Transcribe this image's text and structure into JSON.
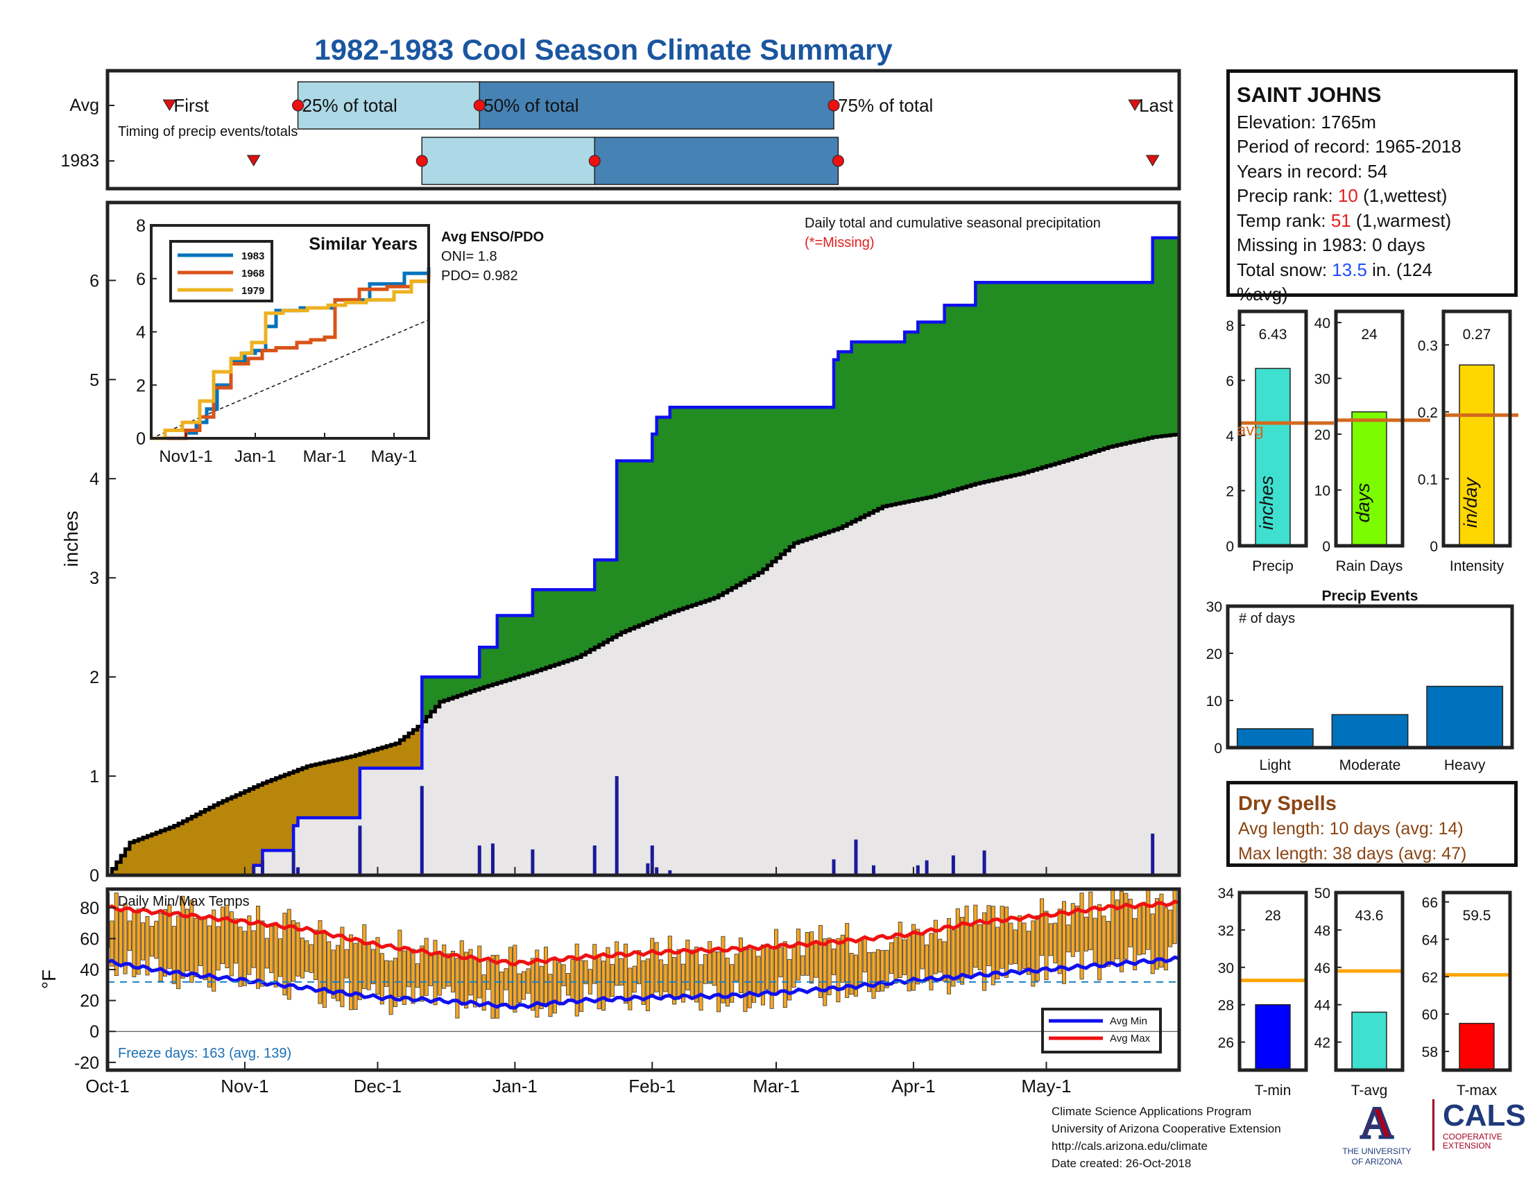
{
  "title": "1982-1983 Cool Season Climate Summary",
  "colors": {
    "title_blue": "#1a56a0",
    "light_blue": "#add8e6",
    "steel_blue": "#4682b4",
    "surplus_green": "#228b22",
    "deficit_brown": "#b8860b",
    "avg_fill_grey": "#e8e6e6",
    "season_line_blue": "#1010ee",
    "temp_bar_orange": "#f5a623",
    "max_red": "#ee1111",
    "min_blue": "#1010ee",
    "avg_line_orange": "#d2691e",
    "dry_brown": "#8b4513"
  },
  "station": {
    "name": "SAINT JOHNS",
    "elevation": "Elevation: 1765m",
    "period": "Period of record: 1965-2018",
    "years": "Years in record: 54",
    "precip_rank_label": "Precip rank: ",
    "precip_rank_value": "10",
    "precip_rank_note": " (1,wettest)",
    "temp_rank_label": "Temp rank: ",
    "temp_rank_value": "51",
    "temp_rank_note": " (1,warmest)",
    "missing": "Missing in 1983: 0 days",
    "snow_label": "Total snow: ",
    "snow_value": "13.5",
    "snow_note_1": " in. (124",
    "snow_note_2": "%avg)"
  },
  "dry_spells": {
    "heading": "Dry Spells",
    "avg_length": "Avg length: 10 days (avg: 14)",
    "max_length": "Max length: 38 days (avg: 47)"
  },
  "credits": {
    "line1": "Climate Science Applications Program",
    "line2": "University of Arizona Cooperative Extension",
    "line3": "http://cals.arizona.edu/climate",
    "line4": " Date created: 26-Oct-2018"
  },
  "logos": {
    "ua_mark": "A",
    "ua_caption_1": "THE UNIVERSITY",
    "ua_caption_2": "OF ARIZONA",
    "cals": "CALS",
    "cals_sub_1": "COOPERATIVE",
    "cals_sub_2": "EXTENSION"
  },
  "chart_data": [
    {
      "type": "timing",
      "title": "",
      "subtitle": "Timing of precip events/totals",
      "rows": [
        "Avg",
        "1983"
      ],
      "labels": {
        "first": "First",
        "q25": "25% of total",
        "q50": "50% of total",
        "q75": "75% of total",
        "last": "Last"
      },
      "avg": {
        "first": "1982-10-15",
        "q25": "1982-11-13",
        "q50": "1982-12-24",
        "q75": "1983-03-14",
        "last": "1983-05-21"
      },
      "year": {
        "first": "1982-11-03",
        "q25": "1982-12-11",
        "q50": "1983-01-19",
        "q75": "1983-03-15",
        "last": "1983-05-25"
      }
    },
    {
      "type": "area",
      "title": "Daily total and cumulative seasonal precipitation",
      "subtitle": "(*=Missing)",
      "ylabel": "inches",
      "xlim": [
        "1982-10-01",
        "1983-05-31"
      ],
      "ylim": [
        0,
        6.8
      ],
      "yticks": [
        0,
        1,
        2,
        3,
        4,
        5,
        6
      ],
      "xticks": [
        {
          "date": "1982-10-01",
          "label": "Oct-1"
        },
        {
          "date": "1982-11-01",
          "label": "Nov-1"
        },
        {
          "date": "1982-12-01",
          "label": "Dec-1"
        },
        {
          "date": "1983-01-01",
          "label": "Jan-1"
        },
        {
          "date": "1983-02-01",
          "label": "Feb-1"
        },
        {
          "date": "1983-03-01",
          "label": "Mar-1"
        },
        {
          "date": "1983-04-01",
          "label": "Apr-1"
        },
        {
          "date": "1983-05-01",
          "label": "May-1"
        }
      ],
      "avg_cumulative": [
        [
          "1982-10-01",
          0
        ],
        [
          "1982-10-06",
          0.33
        ],
        [
          "1982-10-16",
          0.5
        ],
        [
          "1982-10-26",
          0.73
        ],
        [
          "1982-11-05",
          0.93
        ],
        [
          "1982-11-15",
          1.1
        ],
        [
          "1982-11-25",
          1.2
        ],
        [
          "1982-12-05",
          1.33
        ],
        [
          "1982-12-10",
          1.5
        ],
        [
          "1982-12-15",
          1.75
        ],
        [
          "1982-12-25",
          1.9
        ],
        [
          "1983-01-05",
          2.05
        ],
        [
          "1983-01-15",
          2.2
        ],
        [
          "1983-01-25",
          2.45
        ],
        [
          "1983-02-05",
          2.65
        ],
        [
          "1983-02-15",
          2.8
        ],
        [
          "1983-02-25",
          3.05
        ],
        [
          "1983-03-05",
          3.35
        ],
        [
          "1983-03-15",
          3.5
        ],
        [
          "1983-03-25",
          3.72
        ],
        [
          "1983-04-05",
          3.82
        ],
        [
          "1983-04-15",
          3.95
        ],
        [
          "1983-04-25",
          4.05
        ],
        [
          "1983-05-05",
          4.18
        ],
        [
          "1983-05-15",
          4.32
        ],
        [
          "1983-05-25",
          4.42
        ],
        [
          "1983-05-31",
          4.45
        ]
      ],
      "season_cumulative": [
        [
          "1982-10-01",
          0
        ],
        [
          "1982-11-03",
          0.1
        ],
        [
          "1982-11-05",
          0.25
        ],
        [
          "1982-11-12",
          0.5
        ],
        [
          "1982-11-13",
          0.58
        ],
        [
          "1982-11-27",
          1.08
        ],
        [
          "1982-12-11",
          2.0
        ],
        [
          "1982-12-24",
          2.3
        ],
        [
          "1982-12-28",
          2.62
        ],
        [
          "1983-01-05",
          2.88
        ],
        [
          "1983-01-19",
          3.18
        ],
        [
          "1983-01-24",
          4.18
        ],
        [
          "1983-02-01",
          4.45
        ],
        [
          "1983-02-02",
          4.62
        ],
        [
          "1983-02-05",
          4.72
        ],
        [
          "1983-03-14",
          5.2
        ],
        [
          "1983-03-15",
          5.28
        ],
        [
          "1983-03-18",
          5.38
        ],
        [
          "1983-03-30",
          5.48
        ],
        [
          "1983-04-02",
          5.58
        ],
        [
          "1983-04-08",
          5.75
        ],
        [
          "1983-04-15",
          5.98
        ],
        [
          "1983-05-25",
          6.43
        ],
        [
          "1983-05-31",
          6.43
        ]
      ],
      "daily": [
        [
          "1982-11-03",
          0.1
        ],
        [
          "1982-11-05",
          0.15
        ],
        [
          "1982-11-12",
          0.25
        ],
        [
          "1982-11-13",
          0.08
        ],
        [
          "1982-11-27",
          0.5
        ],
        [
          "1982-12-11",
          0.9
        ],
        [
          "1982-12-24",
          0.3
        ],
        [
          "1982-12-27",
          0.32
        ],
        [
          "1983-01-05",
          0.26
        ],
        [
          "1983-01-19",
          0.3
        ],
        [
          "1983-01-24",
          1.0
        ],
        [
          "1983-01-31",
          0.12
        ],
        [
          "1983-02-01",
          0.3
        ],
        [
          "1983-02-02",
          0.08
        ],
        [
          "1983-02-05",
          0.05
        ],
        [
          "1983-03-14",
          0.16
        ],
        [
          "1983-03-19",
          0.36
        ],
        [
          "1983-03-23",
          0.1
        ],
        [
          "1983-04-02",
          0.1
        ],
        [
          "1983-04-04",
          0.15
        ],
        [
          "1983-04-10",
          0.2
        ],
        [
          "1983-04-17",
          0.25
        ],
        [
          "1983-05-25",
          0.42
        ]
      ]
    },
    {
      "type": "line",
      "title": "Similar Years",
      "ylim": [
        0,
        8
      ],
      "yticks": [
        0,
        2,
        4,
        6,
        8
      ],
      "xticks": [
        "Nov1-1",
        "Jan-1",
        "Mar-1",
        "May-1"
      ],
      "x_month_positions": [
        1,
        3,
        5,
        7
      ],
      "xlim": [
        0,
        8
      ],
      "series": [
        {
          "name": "1983",
          "color": "#0072bd",
          "points": [
            [
              0,
              0
            ],
            [
              0.3,
              0
            ],
            [
              0.6,
              0
            ],
            [
              1.0,
              0.2
            ],
            [
              1.3,
              0.6
            ],
            [
              1.6,
              1.1
            ],
            [
              1.9,
              2.0
            ],
            [
              2.3,
              2.9
            ],
            [
              2.7,
              3.2
            ],
            [
              3.0,
              3.3
            ],
            [
              3.3,
              4.2
            ],
            [
              3.6,
              4.8
            ],
            [
              4.3,
              4.9
            ],
            [
              5.3,
              5.2
            ],
            [
              6.3,
              5.8
            ],
            [
              7.3,
              6.2
            ],
            [
              8,
              6.43
            ]
          ]
        },
        {
          "name": "1968",
          "color": "#d95319",
          "points": [
            [
              0,
              0
            ],
            [
              0.7,
              0
            ],
            [
              1.0,
              0.3
            ],
            [
              1.4,
              0.8
            ],
            [
              1.8,
              1.9
            ],
            [
              2.3,
              2.8
            ],
            [
              2.8,
              3.0
            ],
            [
              3.2,
              3.3
            ],
            [
              3.6,
              3.4
            ],
            [
              4.2,
              3.6
            ],
            [
              4.6,
              3.7
            ],
            [
              5.0,
              3.8
            ],
            [
              5.3,
              5.2
            ],
            [
              6.0,
              5.6
            ],
            [
              6.8,
              5.7
            ],
            [
              7.5,
              5.9
            ],
            [
              8,
              6.2
            ]
          ]
        },
        {
          "name": "1979",
          "color": "#edb120",
          "points": [
            [
              0,
              0
            ],
            [
              0.4,
              0.3
            ],
            [
              0.9,
              0.6
            ],
            [
              1.4,
              1.4
            ],
            [
              1.8,
              2.5
            ],
            [
              2.3,
              3.0
            ],
            [
              2.6,
              3.2
            ],
            [
              2.9,
              3.6
            ],
            [
              3.3,
              4.7
            ],
            [
              3.8,
              4.8
            ],
            [
              4.5,
              4.9
            ],
            [
              5.1,
              5.0
            ],
            [
              5.6,
              5.1
            ],
            [
              6.2,
              5.2
            ],
            [
              7.0,
              5.5
            ],
            [
              7.5,
              5.9
            ],
            [
              8,
              6.0
            ]
          ]
        }
      ],
      "avg_dashed": [
        [
          0,
          0
        ],
        [
          8,
          4.45
        ]
      ]
    },
    {
      "type": "text",
      "title": "Avg ENSO/PDO",
      "oni": "ONI= 1.8",
      "pdo": "PDO= 0.982"
    },
    {
      "type": "bar",
      "title": "Precip",
      "unit_label": "inches",
      "value": 6.43,
      "value_label": "6.43",
      "avg": 4.45,
      "avg_label": "avg",
      "ylim": [
        0,
        8.5
      ],
      "yticks": [
        0,
        2,
        4,
        6,
        8
      ],
      "color": "#40e0d0"
    },
    {
      "type": "bar",
      "title": "Rain Days",
      "unit_label": "days",
      "value": 24,
      "value_label": "24",
      "avg": 22.5,
      "ylim": [
        0,
        42
      ],
      "yticks": [
        0,
        10,
        20,
        30,
        40
      ],
      "color": "#7cfc00"
    },
    {
      "type": "bar",
      "title": "Intensity",
      "unit_label": "in/day",
      "value": 0.27,
      "value_label": "0.27",
      "avg": 0.195,
      "ylim": [
        0,
        0.35
      ],
      "yticks": [
        0,
        0.1,
        0.2,
        0.3
      ],
      "ytick_labels": [
        "0",
        "0.1",
        "0.2",
        "0.3"
      ],
      "color": "#ffd700"
    },
    {
      "type": "bar",
      "title": "Precip Events",
      "subtitle": "# of days",
      "categories": [
        "Light",
        "Moderate",
        "Heavy"
      ],
      "values": [
        4,
        7,
        13
      ],
      "ylim": [
        0,
        30
      ],
      "yticks": [
        0,
        10,
        20,
        30
      ],
      "color": "#0072bd"
    },
    {
      "type": "bar",
      "title": "Daily Min/Max Temps",
      "ylabel": "°F",
      "ylim": [
        -25,
        92
      ],
      "yticks": [
        -20,
        0,
        20,
        40,
        60,
        80
      ],
      "freeze_line": 32,
      "freeze_text": "Freeze days: 163 (avg. 139)",
      "legend": [
        "Avg Min",
        "Avg Max"
      ],
      "legend_position": "bottom-right",
      "avg_max": [
        [
          0,
          80
        ],
        [
          15,
          76
        ],
        [
          31,
          71
        ],
        [
          45,
          66
        ],
        [
          61,
          56
        ],
        [
          75,
          50
        ],
        [
          92,
          44
        ],
        [
          107,
          48
        ],
        [
          123,
          51
        ],
        [
          140,
          53
        ],
        [
          151,
          55
        ],
        [
          165,
          58
        ],
        [
          182,
          63
        ],
        [
          195,
          70
        ],
        [
          212,
          75
        ],
        [
          225,
          80
        ],
        [
          242,
          83
        ]
      ],
      "avg_min": [
        [
          0,
          45
        ],
        [
          15,
          38
        ],
        [
          31,
          33
        ],
        [
          45,
          28
        ],
        [
          61,
          22
        ],
        [
          75,
          20
        ],
        [
          92,
          16
        ],
        [
          107,
          20
        ],
        [
          123,
          22
        ],
        [
          140,
          23
        ],
        [
          151,
          25
        ],
        [
          165,
          28
        ],
        [
          182,
          33
        ],
        [
          195,
          36
        ],
        [
          212,
          40
        ],
        [
          225,
          43
        ],
        [
          242,
          47
        ]
      ],
      "daily_range_note": "day index 0 = Oct-1"
    },
    {
      "type": "bar",
      "title": "T-min",
      "value": 28,
      "value_label": "28",
      "avg": 29.3,
      "ylim": [
        24.5,
        34
      ],
      "yticks": [
        26,
        28,
        30,
        32,
        34
      ],
      "color": "#0000ff"
    },
    {
      "type": "bar",
      "title": "T-avg",
      "value": 43.6,
      "value_label": "43.6",
      "avg": 45.8,
      "ylim": [
        40.5,
        50
      ],
      "yticks": [
        42,
        44,
        46,
        48,
        50
      ],
      "color": "#40e0d0"
    },
    {
      "type": "bar",
      "title": "T-max",
      "value": 59.5,
      "value_label": "59.5",
      "avg": 62.1,
      "ylim": [
        57,
        66.5
      ],
      "yticks": [
        58,
        60,
        62,
        64,
        66
      ],
      "color": "#ff0000"
    }
  ]
}
